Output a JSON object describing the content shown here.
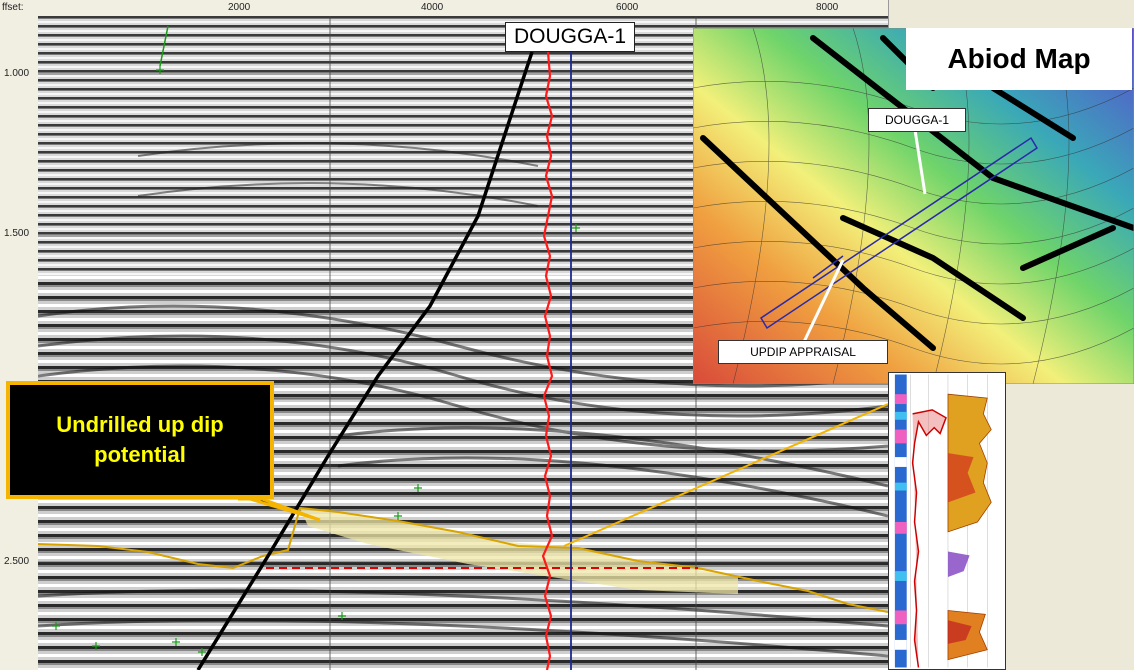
{
  "axis": {
    "offset_label": "ffset:",
    "x_ticks": [
      "2000",
      "4000",
      "6000",
      "8000"
    ],
    "y_ticks": [
      "1.000",
      "1.500",
      "2.500"
    ]
  },
  "well": {
    "main_label": "DOUGGA-1",
    "map_label": "DOUGGA-1",
    "appraisal_label": "UPDIP APPRAISAL"
  },
  "map": {
    "title": "Abiod Map"
  },
  "callout": {
    "text": "Undrilled up dip potential"
  },
  "colors": {
    "horizon": "#d9a400",
    "well_trace": "#ff1a1a",
    "well_path": "#1a2a8c",
    "fault": "#000000",
    "callout_border": "#f4b400",
    "callout_text": "#ffff00",
    "highlight": "#efe7a8"
  }
}
